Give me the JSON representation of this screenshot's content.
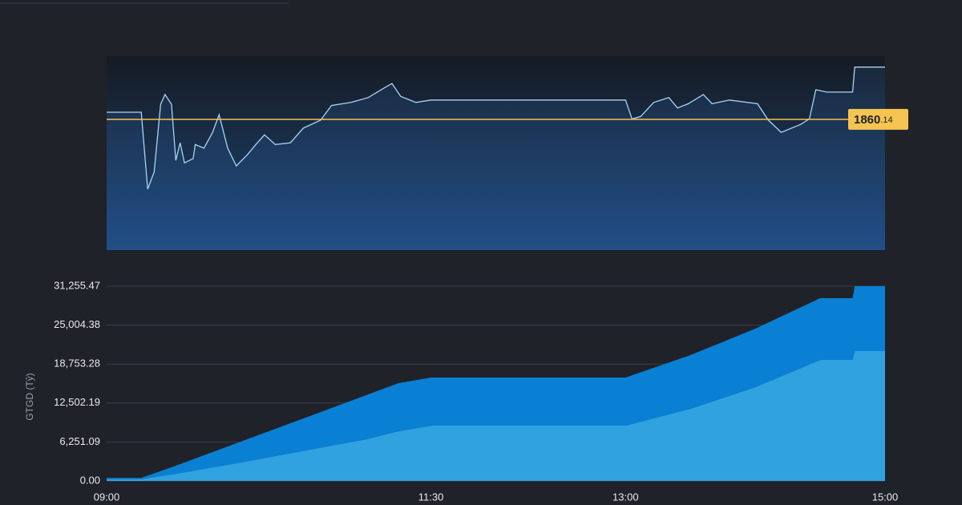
{
  "chart_data": [
    {
      "type": "line",
      "x": [
        "09:00",
        "09:16",
        "09:19",
        "09:22",
        "09:25",
        "09:27",
        "09:30",
        "09:32",
        "09:34",
        "09:36",
        "09:40",
        "09:41",
        "09:45",
        "09:49",
        "09:52",
        "09:56",
        "10:00",
        "10:05",
        "10:09",
        "10:13",
        "10:18",
        "10:25",
        "10:31",
        "10:39",
        "10:44",
        "10:53",
        "11:01",
        "11:08",
        "11:12",
        "11:16",
        "11:23",
        "11:30",
        "13:00",
        "13:03",
        "13:07",
        "13:13",
        "13:20",
        "13:24",
        "13:29",
        "13:36",
        "13:40",
        "13:48",
        "14:01",
        "14:06",
        "14:12",
        "14:21",
        "14:25",
        "14:28",
        "14:33",
        "14:45",
        "14:46",
        "15:00"
      ],
      "values": [
        1861.3,
        1861.3,
        1848.7,
        1851.5,
        1862.6,
        1864.2,
        1862.6,
        1853.4,
        1856.3,
        1853.0,
        1853.7,
        1856.0,
        1855.4,
        1858.0,
        1860.9,
        1855.4,
        1852.5,
        1854.3,
        1856.0,
        1857.6,
        1856.0,
        1856.3,
        1858.7,
        1860.0,
        1862.4,
        1862.9,
        1863.7,
        1865.2,
        1866.0,
        1863.9,
        1862.9,
        1863.3,
        1863.3,
        1860.2,
        1860.6,
        1862.9,
        1863.7,
        1862.0,
        1862.7,
        1864.2,
        1862.7,
        1863.3,
        1862.7,
        1860.0,
        1858.0,
        1859.3,
        1860.2,
        1865.0,
        1864.6,
        1864.6,
        1868.7,
        1868.7
      ],
      "color": "#a9d4f5",
      "xlim": [
        "09:00",
        "15:00"
      ],
      "ylim": [
        1838.7,
        1870.5
      ],
      "reference_line": {
        "value": 1860.14,
        "color": "#f5c451"
      }
    },
    {
      "type": "stacked_area",
      "x": [
        "09:00",
        "09:16",
        "09:30",
        "10:00",
        "10:30",
        "11:00",
        "11:15",
        "11:30",
        "13:00",
        "13:30",
        "14:00",
        "14:30",
        "14:45",
        "14:46",
        "15:00"
      ],
      "series": [
        {
          "color": "#30a2e0",
          "values": [
            300,
            300,
            1029,
            2829,
            4758,
            6687,
            7973,
            8873,
            8873,
            11574,
            15046,
            19419,
            19419,
            20833,
            20833
          ]
        },
        {
          "color": "#0a80d4",
          "values": [
            200,
            200,
            1157,
            3215,
            5144,
            7073,
            7716,
            7716,
            7716,
            8616,
            9388,
            9902,
            9902,
            10422,
            10422
          ]
        }
      ],
      "ylabel": "GTGD (Tỷ)",
      "xlim": [
        "09:00",
        "15:00"
      ],
      "xticks": [
        "09:00",
        "11:30",
        "13:00",
        "15:00"
      ],
      "ylim": [
        0,
        31255.47
      ],
      "yticks": [
        {
          "value": 0,
          "label": "0.00"
        },
        {
          "value": 6251.09,
          "label": "6,251.09"
        },
        {
          "value": 12502.19,
          "label": "12,502.19"
        },
        {
          "value": 18753.28,
          "label": "18,753.28"
        },
        {
          "value": 25004.38,
          "label": "25,004.38"
        },
        {
          "value": 31255.47,
          "label": "31,255.47"
        }
      ],
      "grid": true
    }
  ]
}
